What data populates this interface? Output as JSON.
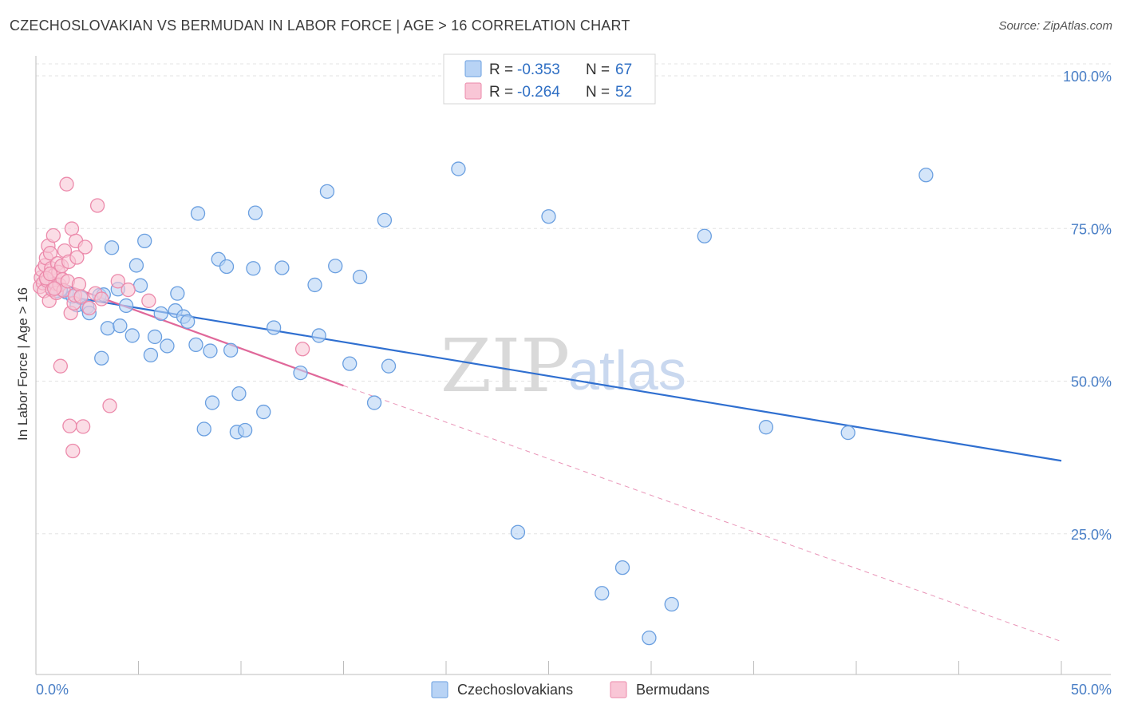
{
  "title": "CZECHOSLOVAKIAN VS BERMUDAN IN LABOR FORCE | AGE > 16 CORRELATION CHART",
  "source": "Source: ZipAtlas.com",
  "watermark": {
    "zip": "ZIP",
    "atlas": "atlas"
  },
  "legend": {
    "rows": [
      {
        "r_label": "R =",
        "r_value": "-0.353",
        "n_label": "N =",
        "n_value": "67",
        "fill": "#b8d3f5",
        "stroke": "#6a9fe0"
      },
      {
        "r_label": "R =",
        "r_value": "-0.264",
        "n_label": "N =",
        "n_value": "52",
        "fill": "#f9c6d6",
        "stroke": "#ec8aab"
      }
    ]
  },
  "bottom_legend": [
    {
      "label": "Czechoslovakians",
      "fill": "#b8d3f5",
      "stroke": "#6a9fe0"
    },
    {
      "label": "Bermudans",
      "fill": "#f9c6d6",
      "stroke": "#ec8aab"
    }
  ],
  "chart_data": {
    "type": "scatter",
    "title": "CZECHOSLOVAKIAN VS BERMUDAN IN LABOR FORCE | AGE > 16 CORRELATION CHART",
    "xlabel": "",
    "ylabel": "In Labor Force | Age > 16",
    "xlim": [
      0,
      50
    ],
    "ylim": [
      0,
      102
    ],
    "x_tick_labels": [
      "0.0%",
      "50.0%"
    ],
    "y_ticks": [
      25,
      50,
      75,
      100
    ],
    "y_tick_labels": [
      "25.0%",
      "50.0%",
      "75.0%",
      "100.0%"
    ],
    "grid": true,
    "legend_position": "top-center",
    "series": [
      {
        "name": "Czechoslovakians",
        "color": "#6a9fe0",
        "fill": "#b8d3f5",
        "points": [
          [
            1.5,
            62.6
          ],
          [
            1.8,
            61.9
          ],
          [
            2.0,
            60.5
          ],
          [
            2.2,
            61.7
          ],
          [
            2.5,
            60.2
          ],
          [
            2.6,
            59.2
          ],
          [
            3.1,
            62.1
          ],
          [
            3.2,
            51.8
          ],
          [
            3.3,
            62.2
          ],
          [
            3.5,
            56.7
          ],
          [
            3.7,
            69.9
          ],
          [
            4.0,
            63.1
          ],
          [
            4.1,
            57.1
          ],
          [
            4.4,
            60.4
          ],
          [
            4.7,
            55.5
          ],
          [
            4.9,
            67.0
          ],
          [
            5.1,
            63.7
          ],
          [
            5.3,
            71.0
          ],
          [
            5.6,
            52.3
          ],
          [
            5.8,
            55.3
          ],
          [
            6.1,
            59.1
          ],
          [
            6.4,
            53.8
          ],
          [
            6.8,
            59.6
          ],
          [
            6.9,
            62.4
          ],
          [
            7.2,
            58.6
          ],
          [
            7.4,
            57.8
          ],
          [
            7.8,
            54.0
          ],
          [
            7.9,
            75.5
          ],
          [
            8.2,
            40.2
          ],
          [
            8.5,
            53.0
          ],
          [
            8.6,
            44.5
          ],
          [
            8.9,
            68.0
          ],
          [
            9.3,
            66.8
          ],
          [
            9.5,
            53.1
          ],
          [
            9.8,
            39.7
          ],
          [
            9.9,
            46.0
          ],
          [
            10.2,
            40.0
          ],
          [
            10.6,
            66.5
          ],
          [
            10.7,
            75.6
          ],
          [
            11.1,
            43.0
          ],
          [
            11.6,
            56.8
          ],
          [
            12.0,
            66.6
          ],
          [
            12.9,
            49.4
          ],
          [
            13.6,
            63.8
          ],
          [
            13.8,
            55.5
          ],
          [
            14.2,
            79.1
          ],
          [
            14.6,
            66.9
          ],
          [
            15.3,
            50.9
          ],
          [
            15.8,
            65.1
          ],
          [
            16.5,
            44.5
          ],
          [
            17.0,
            74.4
          ],
          [
            17.2,
            50.5
          ],
          [
            20.6,
            82.8
          ],
          [
            23.5,
            23.3
          ],
          [
            25.0,
            75.0
          ],
          [
            27.6,
            13.3
          ],
          [
            28.6,
            17.5
          ],
          [
            29.9,
            6.0
          ],
          [
            31.0,
            11.5
          ],
          [
            32.6,
            71.8
          ],
          [
            35.6,
            40.5
          ],
          [
            39.6,
            39.6
          ],
          [
            43.4,
            81.8
          ],
          [
            0.6,
            64.0
          ],
          [
            0.9,
            63.5
          ],
          [
            1.2,
            63.0
          ],
          [
            1.0,
            62.8
          ]
        ],
        "trend": {
          "x": [
            0.5,
            50
          ],
          "y": [
            62.5,
            35.0
          ],
          "style": "solid"
        }
      },
      {
        "name": "Bermudans",
        "color": "#ec8aab",
        "fill": "#f9c6d6",
        "points": [
          [
            0.2,
            63.5
          ],
          [
            0.25,
            65.0
          ],
          [
            0.3,
            66.2
          ],
          [
            0.35,
            64.1
          ],
          [
            0.4,
            62.8
          ],
          [
            0.45,
            67.0
          ],
          [
            0.5,
            68.2
          ],
          [
            0.55,
            64.5
          ],
          [
            0.6,
            70.2
          ],
          [
            0.65,
            61.2
          ],
          [
            0.7,
            69.0
          ],
          [
            0.75,
            66.5
          ],
          [
            0.8,
            63.0
          ],
          [
            0.85,
            71.9
          ],
          [
            0.9,
            65.4
          ],
          [
            0.95,
            64.0
          ],
          [
            1.0,
            62.5
          ],
          [
            1.05,
            67.3
          ],
          [
            1.1,
            65.9
          ],
          [
            1.15,
            63.8
          ],
          [
            1.2,
            50.5
          ],
          [
            1.25,
            66.9
          ],
          [
            1.3,
            64.7
          ],
          [
            1.35,
            62.9
          ],
          [
            1.4,
            69.4
          ],
          [
            1.5,
            80.3
          ],
          [
            1.55,
            64.4
          ],
          [
            1.6,
            67.6
          ],
          [
            1.65,
            40.7
          ],
          [
            1.7,
            59.2
          ],
          [
            1.75,
            73.0
          ],
          [
            1.8,
            36.6
          ],
          [
            1.85,
            60.8
          ],
          [
            1.9,
            62.1
          ],
          [
            1.95,
            71.0
          ],
          [
            2.0,
            68.3
          ],
          [
            2.1,
            63.9
          ],
          [
            2.2,
            61.9
          ],
          [
            2.3,
            40.6
          ],
          [
            2.4,
            70.0
          ],
          [
            2.6,
            60.0
          ],
          [
            2.9,
            62.4
          ],
          [
            3.0,
            76.8
          ],
          [
            3.2,
            61.5
          ],
          [
            3.6,
            44.0
          ],
          [
            4.0,
            64.4
          ],
          [
            4.5,
            63.0
          ],
          [
            5.5,
            61.2
          ],
          [
            13.0,
            53.3
          ],
          [
            0.5,
            64.9
          ],
          [
            0.7,
            65.6
          ],
          [
            0.9,
            63.2
          ]
        ],
        "trend": {
          "x": [
            0.3,
            15,
            50
          ],
          "y": [
            65.2,
            47.3,
            5.4
          ],
          "style": "solid-then-dashed"
        }
      }
    ]
  }
}
